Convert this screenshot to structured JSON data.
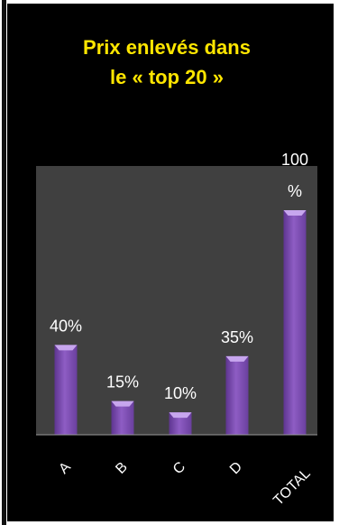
{
  "chart_data": {
    "type": "bar",
    "title_line1": "Prix enlevés dans",
    "title_line2": "le « top 20 »",
    "categories": [
      "A",
      "B",
      "C",
      "D",
      "TOTAL"
    ],
    "values": [
      40,
      15,
      10,
      35,
      100
    ],
    "data_labels": [
      "40%",
      "15%",
      "10%",
      "35%",
      "100 %"
    ],
    "ylim": [
      0,
      100
    ],
    "grid": false,
    "legend": "none",
    "colors": {
      "background": "#000000",
      "plot_area": "#404040",
      "bar": "#8e5dc4",
      "bar_top": "#c7a6ee",
      "title": "#ffe600",
      "text": "#ffffff"
    }
  }
}
